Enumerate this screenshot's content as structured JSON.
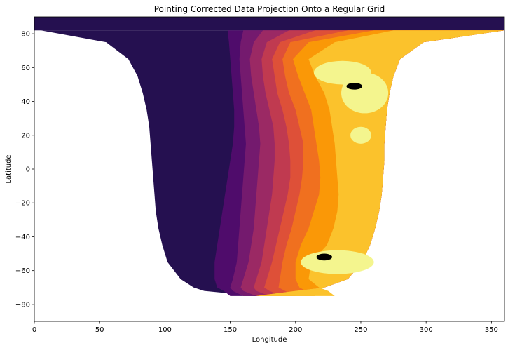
{
  "chart_data": {
    "type": "heatmap",
    "title": "Pointing Corrected Data Projection Onto a Regular Grid",
    "xlabel": "Longitude",
    "ylabel": "Latitude",
    "xlim": [
      0,
      360
    ],
    "ylim": [
      -90,
      90
    ],
    "x_ticks": [
      0,
      50,
      100,
      150,
      200,
      250,
      300,
      350
    ],
    "y_ticks": [
      -80,
      -60,
      -40,
      -20,
      0,
      20,
      40,
      60,
      80
    ],
    "grid": false,
    "colormap": "inferno",
    "palette": [
      "#251050",
      "#4f0c6b",
      "#741a6e",
      "#9b2964",
      "#c03a50",
      "#de5038",
      "#f0701f",
      "#fa9807",
      "#fbc22c",
      "#f4f58e"
    ],
    "disk_outline": {
      "lat": [
        82,
        75,
        65,
        55,
        45,
        35,
        25,
        15,
        5,
        -5,
        -15,
        -25,
        -35,
        -45,
        -55,
        -65,
        -70,
        -72,
        -75
      ],
      "lon_left": [
        5,
        55,
        72,
        79,
        83,
        86,
        88,
        89,
        90,
        91,
        92,
        93,
        95,
        98,
        102,
        112,
        122,
        130,
        170
      ],
      "lon_right": [
        360,
        298,
        280,
        275,
        272,
        270,
        269,
        268,
        268,
        267,
        266,
        264,
        261,
        257,
        251,
        240,
        222,
        200,
        170
      ]
    },
    "bands": [
      {
        "level": 1,
        "boundary_lon": [
          148,
          149,
          150,
          151,
          152,
          153,
          153,
          152,
          150,
          148,
          146,
          144,
          142,
          140,
          138,
          138,
          140,
          145,
          150
        ]
      },
      {
        "level": 2,
        "boundary_lon": [
          160,
          158,
          157,
          158,
          159,
          160,
          161,
          162,
          161,
          160,
          159,
          158,
          157,
          156,
          155,
          152,
          150,
          152,
          160
        ]
      },
      {
        "level": 3,
        "boundary_lon": [
          175,
          168,
          165,
          166,
          168,
          170,
          172,
          173,
          172,
          171,
          170,
          169,
          168,
          166,
          164,
          160,
          158,
          160,
          170
        ]
      },
      {
        "level": 4,
        "boundary_lon": [
          195,
          178,
          174,
          175,
          177,
          180,
          183,
          184,
          184,
          183,
          182,
          180,
          178,
          176,
          174,
          170,
          168,
          170,
          180
        ]
      },
      {
        "level": 5,
        "boundary_lon": [
          215,
          188,
          182,
          184,
          186,
          190,
          193,
          195,
          196,
          196,
          194,
          191,
          188,
          185,
          182,
          178,
          176,
          180,
          190
        ]
      },
      {
        "level": 6,
        "boundary_lon": [
          240,
          196,
          190,
          192,
          195,
          200,
          203,
          206,
          206,
          205,
          203,
          200,
          197,
          193,
          190,
          188,
          187,
          192,
          200
        ]
      },
      {
        "level": 7,
        "boundary_lon": [
          260,
          210,
          198,
          202,
          207,
          212,
          214,
          216,
          218,
          219,
          218,
          214,
          210,
          204,
          200,
          200,
          203,
          208,
          215
        ]
      },
      {
        "level": 8,
        "boundary_lon": [
          275,
          230,
          210,
          215,
          222,
          226,
          228,
          230,
          231,
          232,
          233,
          232,
          229,
          224,
          212,
          210,
          218,
          225,
          230
        ]
      }
    ],
    "hot_spots": [
      {
        "level": 9,
        "center": [
          236,
          57
        ],
        "radius": [
          22,
          7
        ]
      },
      {
        "level": 9,
        "center": [
          253,
          45
        ],
        "radius": [
          18,
          12
        ]
      },
      {
        "level": 9,
        "center": [
          232,
          -55
        ],
        "radius": [
          28,
          7
        ]
      },
      {
        "level": 9,
        "center": [
          250,
          20
        ],
        "radius": [
          8,
          5
        ]
      },
      {
        "level": 10,
        "center": [
          245,
          49
        ],
        "radius": [
          6,
          2
        ]
      },
      {
        "level": 10,
        "center": [
          222,
          -52
        ],
        "radius": [
          6,
          2
        ]
      }
    ]
  }
}
